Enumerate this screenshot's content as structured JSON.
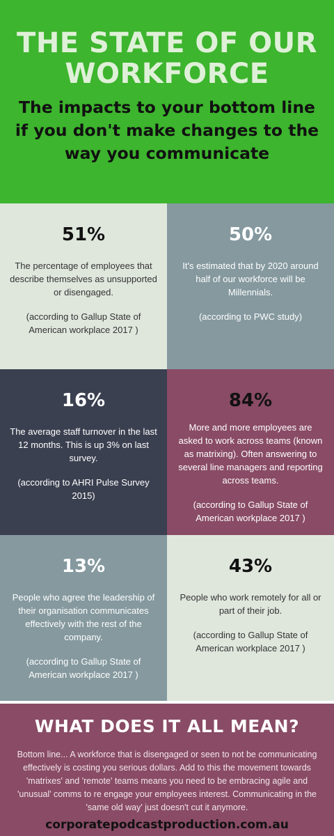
{
  "header": {
    "title": "THE STATE OF OUR WORKFORCE",
    "subtitle": "The impacts to your bottom line if you don't make changes to the way you communicate"
  },
  "stats": [
    {
      "percent": "51%",
      "description": "The percentage of employees that describe themselves as unsupported or disengaged.",
      "source": "(according to Gallup State of American workplace 2017 )"
    },
    {
      "percent": "50%",
      "description": "It's estimated that by 2020 around half of our workforce will be Millennials.",
      "source": "(according to PWC study)"
    },
    {
      "percent": "16%",
      "description": "The average staff turnover in the last 12 months. This is up 3% on last survey.",
      "source": "(according to AHRI Pulse Survey 2015)"
    },
    {
      "percent": "84%",
      "description": "More and more employees are asked to work across teams (known as matrixing). Often answering to several line managers and reporting across teams.",
      "source": "(according to Gallup State of American workplace 2017 )"
    },
    {
      "percent": "13%",
      "description": "People who agree the leadership of their organisation communicates effectively with the rest of the company.",
      "source": "(according to Gallup State of American workplace 2017 )"
    },
    {
      "percent": "43%",
      "description": "People who work remotely for all or part of their job.",
      "source": "(according to Gallup State of American workplace 2017 )"
    }
  ],
  "footer": {
    "title": "WHAT DOES IT ALL MEAN?",
    "body": "Bottom line... A workforce that is disengaged or seen to not be communicating effectively is costing you serious dollars. Add to this the movement towards 'matrixes' and 'remote' teams means you need to be embracing agile and 'unusual' comms to re engage your employees interest. Communicating in the 'same old way' just doesn't cut it anymore.",
    "url": "corporatepodcastproduction.com.au"
  },
  "colors": {
    "header_green": "#3db52e",
    "light_panel": "#dfe7dd",
    "slate_panel": "#85999f",
    "dark_panel": "#3b4050",
    "plum_panel": "#894b65"
  }
}
